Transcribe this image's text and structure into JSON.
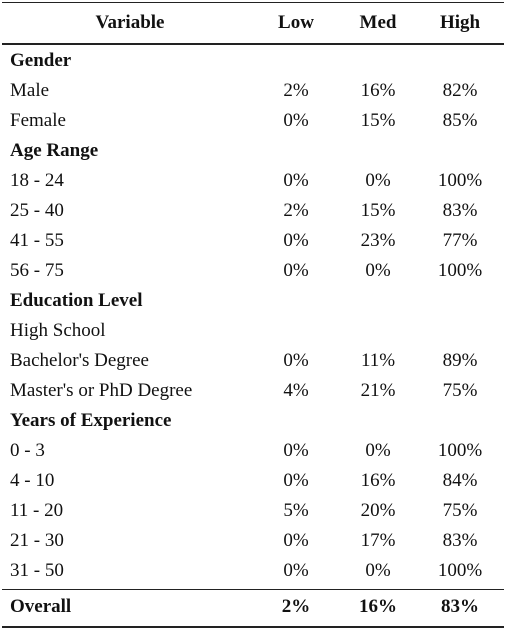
{
  "table": {
    "header": [
      "Variable",
      "Low",
      "Med",
      "High"
    ],
    "sections": [
      {
        "title": "Gender",
        "rows": [
          [
            "Male",
            "2%",
            "16%",
            "82%"
          ],
          [
            "Female",
            "0%",
            "15%",
            "85%"
          ]
        ]
      },
      {
        "title": "Age Range",
        "rows": [
          [
            "18 - 24",
            "0%",
            "0%",
            "100%"
          ],
          [
            "25 - 40",
            "2%",
            "15%",
            "83%"
          ],
          [
            "41 - 55",
            "0%",
            "23%",
            "77%"
          ],
          [
            "56 - 75",
            "0%",
            "0%",
            "100%"
          ]
        ]
      },
      {
        "title": "Education Level",
        "rows": [
          [
            "High School"
          ],
          [
            "Bachelor's Degree",
            "0%",
            "11%",
            "89%"
          ],
          [
            "Master's or PhD Degree",
            "4%",
            "21%",
            "75%"
          ]
        ]
      },
      {
        "title": "Years of Experience",
        "rows": [
          [
            "0 - 3",
            "0%",
            "0%",
            "100%"
          ],
          [
            "4 - 10",
            "0%",
            "16%",
            "84%"
          ],
          [
            "11 - 20",
            "5%",
            "20%",
            "75%"
          ],
          [
            "21 - 30",
            "0%",
            "17%",
            "83%"
          ],
          [
            "31 - 50",
            "0%",
            "0%",
            "100%"
          ]
        ]
      }
    ],
    "overall": [
      "Overall",
      "2%",
      "16%",
      "83%"
    ]
  }
}
